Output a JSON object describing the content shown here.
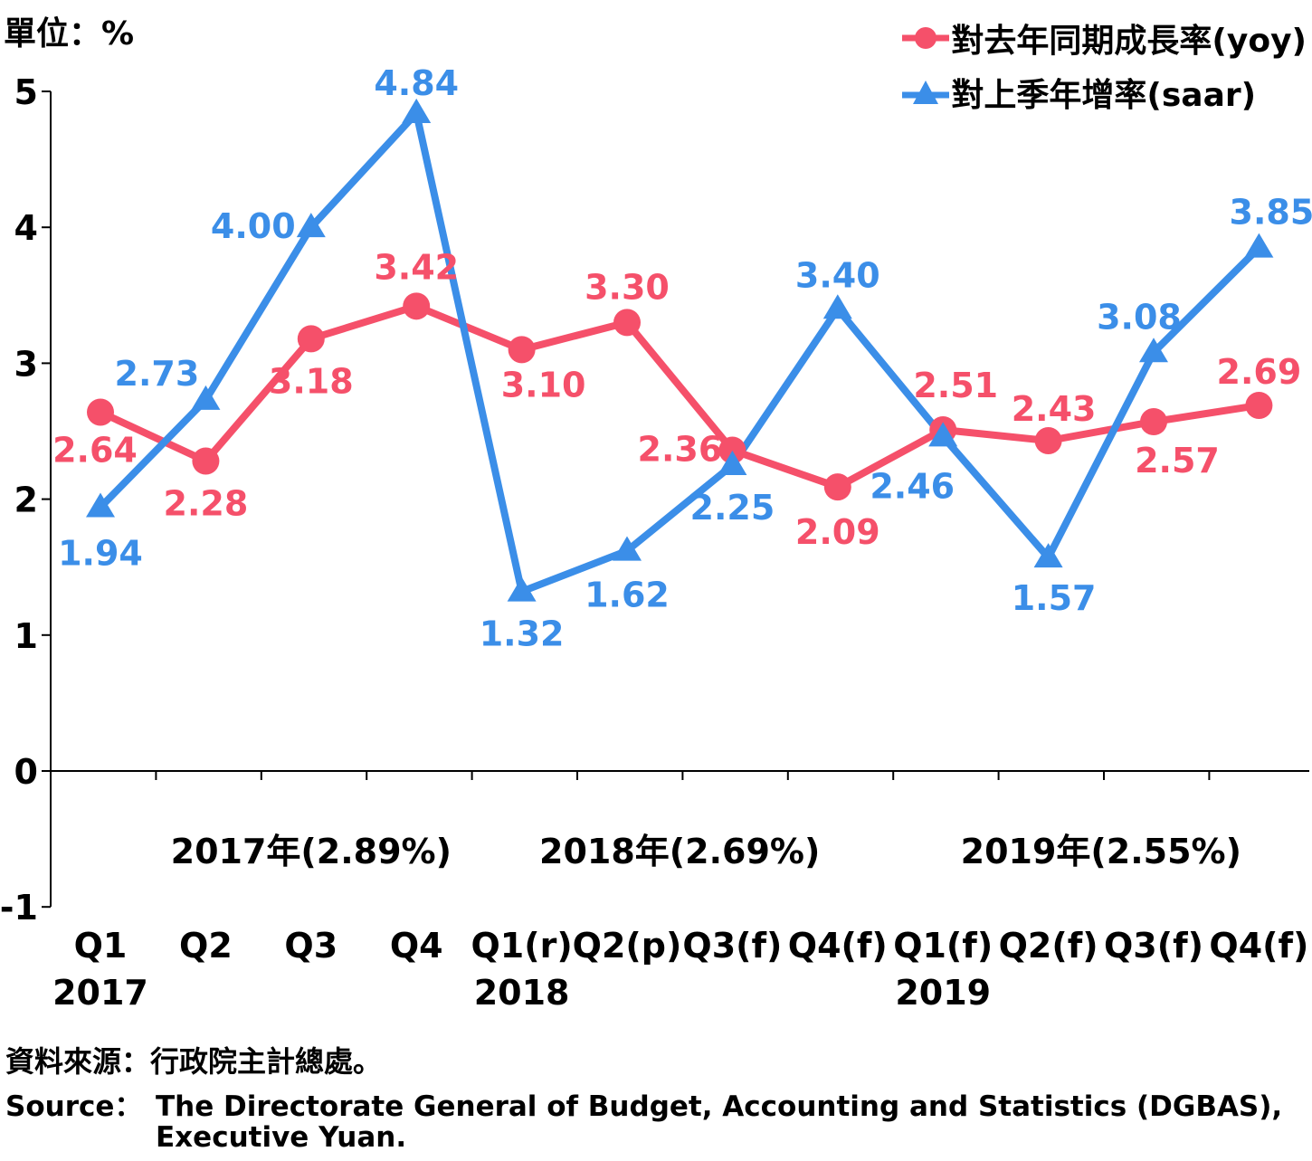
{
  "unit_label": "單位：%",
  "source": {
    "cn": "資料來源：行政院主計總處。",
    "en_label": "Source：",
    "en_text": "The Directorate General of Budget, Accounting and Statistics (DGBAS), Executive Yuan."
  },
  "colors": {
    "yoy": "#f5506a",
    "saar": "#3b8ee8",
    "axis": "#000000"
  },
  "chart_data": {
    "type": "line",
    "ylim": [
      -1,
      5
    ],
    "yticks": [
      "5",
      "4",
      "3",
      "2",
      "1",
      "0",
      "-1"
    ],
    "categories": [
      "Q1",
      "Q2",
      "Q3",
      "Q4",
      "Q1(r)",
      "Q2(p)",
      "Q3(f)",
      "Q4(f)",
      "Q1(f)",
      "Q2(f)",
      "Q3(f)",
      "Q4(f)"
    ],
    "years": [
      {
        "label": "2017",
        "index": 0
      },
      {
        "label": "2018",
        "index": 4
      },
      {
        "label": "2019",
        "index": 8
      }
    ],
    "year_annotations": [
      {
        "label": "2017年(2.89%)",
        "center_index": 2.0
      },
      {
        "label": "2018年(2.69%)",
        "center_index": 5.5
      },
      {
        "label": "2019年(2.55%)",
        "center_index": 9.5
      }
    ],
    "series": [
      {
        "name": "對去年同期成長率(yoy)",
        "marker": "circle",
        "values": [
          2.64,
          2.28,
          3.18,
          3.42,
          3.1,
          3.3,
          2.36,
          2.09,
          2.51,
          2.43,
          2.57,
          2.69
        ],
        "labels": [
          "2.64",
          "2.28",
          "3.18",
          "3.42",
          "3.10",
          "3.30",
          "2.36",
          "2.09",
          "2.51",
          "2.43",
          "2.57",
          "2.69"
        ]
      },
      {
        "name": "對上季年增率(saar)",
        "marker": "triangle",
        "values": [
          1.94,
          2.73,
          4.0,
          4.84,
          1.32,
          1.62,
          2.25,
          3.4,
          2.46,
          1.57,
          3.08,
          3.85
        ],
        "labels": [
          "1.94",
          "2.73",
          "4.00",
          "4.84",
          "1.32",
          "1.62",
          "2.25",
          "3.40",
          "2.46",
          "1.57",
          "3.08",
          "3.85"
        ]
      }
    ]
  }
}
